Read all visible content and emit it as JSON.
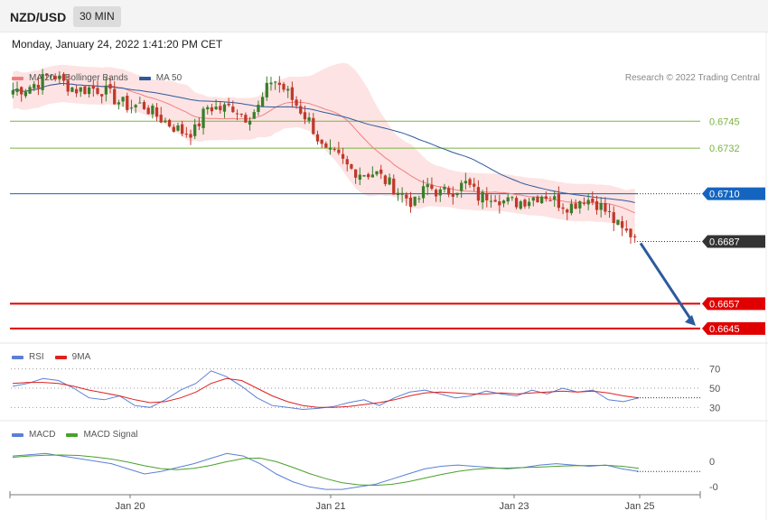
{
  "header": {
    "pair": "NZD/USD",
    "timeframe": "30 MIN",
    "datetime": "Monday, January 24, 2022 1:41:20 PM CET"
  },
  "legends": {
    "main": [
      {
        "label": "MA 20 + Bollinger Bands",
        "color": "#f08080"
      },
      {
        "label": "MA 50",
        "color": "#2d5a9e"
      }
    ],
    "rsi": [
      {
        "label": "RSI",
        "color": "#5b7fd6"
      },
      {
        "label": "9MA",
        "color": "#e02020"
      }
    ],
    "macd": [
      {
        "label": "MACD",
        "color": "#5b7fd6"
      },
      {
        "label": "MACD Signal",
        "color": "#4aa02c"
      }
    ]
  },
  "credit": "Research © 2022 Trading Central",
  "colors": {
    "up": "#3a7d2a",
    "down": "#c0392b",
    "band": "#fde3e3",
    "ma20": "#f08080",
    "ma50": "#2d5a9e",
    "green_level": "#7cb342",
    "blue_level": "#1565c0",
    "red_level": "#e00000",
    "current": "#333333",
    "arrow": "#2d5a9e"
  },
  "chart_data": {
    "type": "candlestick",
    "price_range": [
      0.6638,
      0.6773
    ],
    "x_labels": [
      "Jan 20",
      "Jan 21",
      "Jan 23",
      "Jan 25"
    ],
    "levels": [
      {
        "value": "0.6745",
        "kind": "green"
      },
      {
        "value": "0.6732",
        "kind": "green"
      },
      {
        "value": "0.6710",
        "kind": "blue"
      },
      {
        "value": "0.6687",
        "kind": "current"
      },
      {
        "value": "0.6657",
        "kind": "red"
      },
      {
        "value": "0.6645",
        "kind": "red"
      }
    ],
    "close_path": [
      0.676,
      0.6761,
      0.6764,
      0.6768,
      0.6763,
      0.676,
      0.6761,
      0.676,
      0.6755,
      0.6752,
      0.6753,
      0.6748,
      0.6744,
      0.674,
      0.674,
      0.6752,
      0.6751,
      0.6752,
      0.6747,
      0.6752,
      0.6766,
      0.676,
      0.6752,
      0.6744,
      0.673,
      0.6728,
      0.6722,
      0.672,
      0.672,
      0.6715,
      0.671,
      0.6705,
      0.6714,
      0.671,
      0.6712,
      0.6715,
      0.6708,
      0.671,
      0.6706,
      0.6706,
      0.6708,
      0.671,
      0.6706,
      0.6704,
      0.6708,
      0.6706,
      0.67,
      0.6692,
      0.669
    ],
    "rsi": {
      "ticks": [
        "70",
        "50",
        "30"
      ],
      "range": [
        20,
        80
      ],
      "rsi": [
        52,
        55,
        60,
        58,
        50,
        40,
        38,
        42,
        32,
        30,
        38,
        48,
        55,
        68,
        62,
        52,
        40,
        32,
        30,
        28,
        29,
        31,
        35,
        38,
        32,
        40,
        46,
        48,
        44,
        40,
        42,
        47,
        44,
        42,
        48,
        44,
        50,
        46,
        48,
        38,
        36,
        40
      ],
      "ma9": [
        55,
        56,
        56,
        55,
        52,
        48,
        45,
        42,
        38,
        35,
        36,
        40,
        46,
        55,
        60,
        58,
        50,
        42,
        36,
        32,
        30,
        30,
        31,
        33,
        35,
        38,
        42,
        45,
        46,
        45,
        44,
        44,
        45,
        44,
        45,
        46,
        47,
        46,
        47,
        45,
        42,
        40
      ]
    },
    "macd": {
      "ticks": [
        "0",
        "-0"
      ],
      "range": [
        -10,
        10
      ],
      "macd": [
        4,
        4.5,
        5,
        4,
        3,
        2,
        1,
        -1,
        -3,
        -2,
        -0.5,
        1,
        3,
        5,
        4,
        1,
        -3,
        -6,
        -8,
        -9,
        -9,
        -8,
        -7,
        -5,
        -3,
        -1,
        0,
        0.5,
        0,
        -0.5,
        -1,
        -0.5,
        0.5,
        1,
        0.5,
        0,
        0.5,
        -1,
        -2
      ],
      "signal": [
        3.5,
        4,
        4.3,
        4.4,
        4.2,
        3.6,
        2.8,
        1.6,
        0.2,
        -0.9,
        -1.3,
        -0.8,
        0.3,
        1.8,
        3,
        3.2,
        1.8,
        -0.4,
        -2.8,
        -4.8,
        -6.4,
        -7.2,
        -7.4,
        -7,
        -6,
        -4.6,
        -3.2,
        -2,
        -1.2,
        -0.8,
        -0.7,
        -0.5,
        -0.3,
        0,
        0.2,
        0.3,
        0.4,
        0,
        -0.8
      ]
    }
  }
}
